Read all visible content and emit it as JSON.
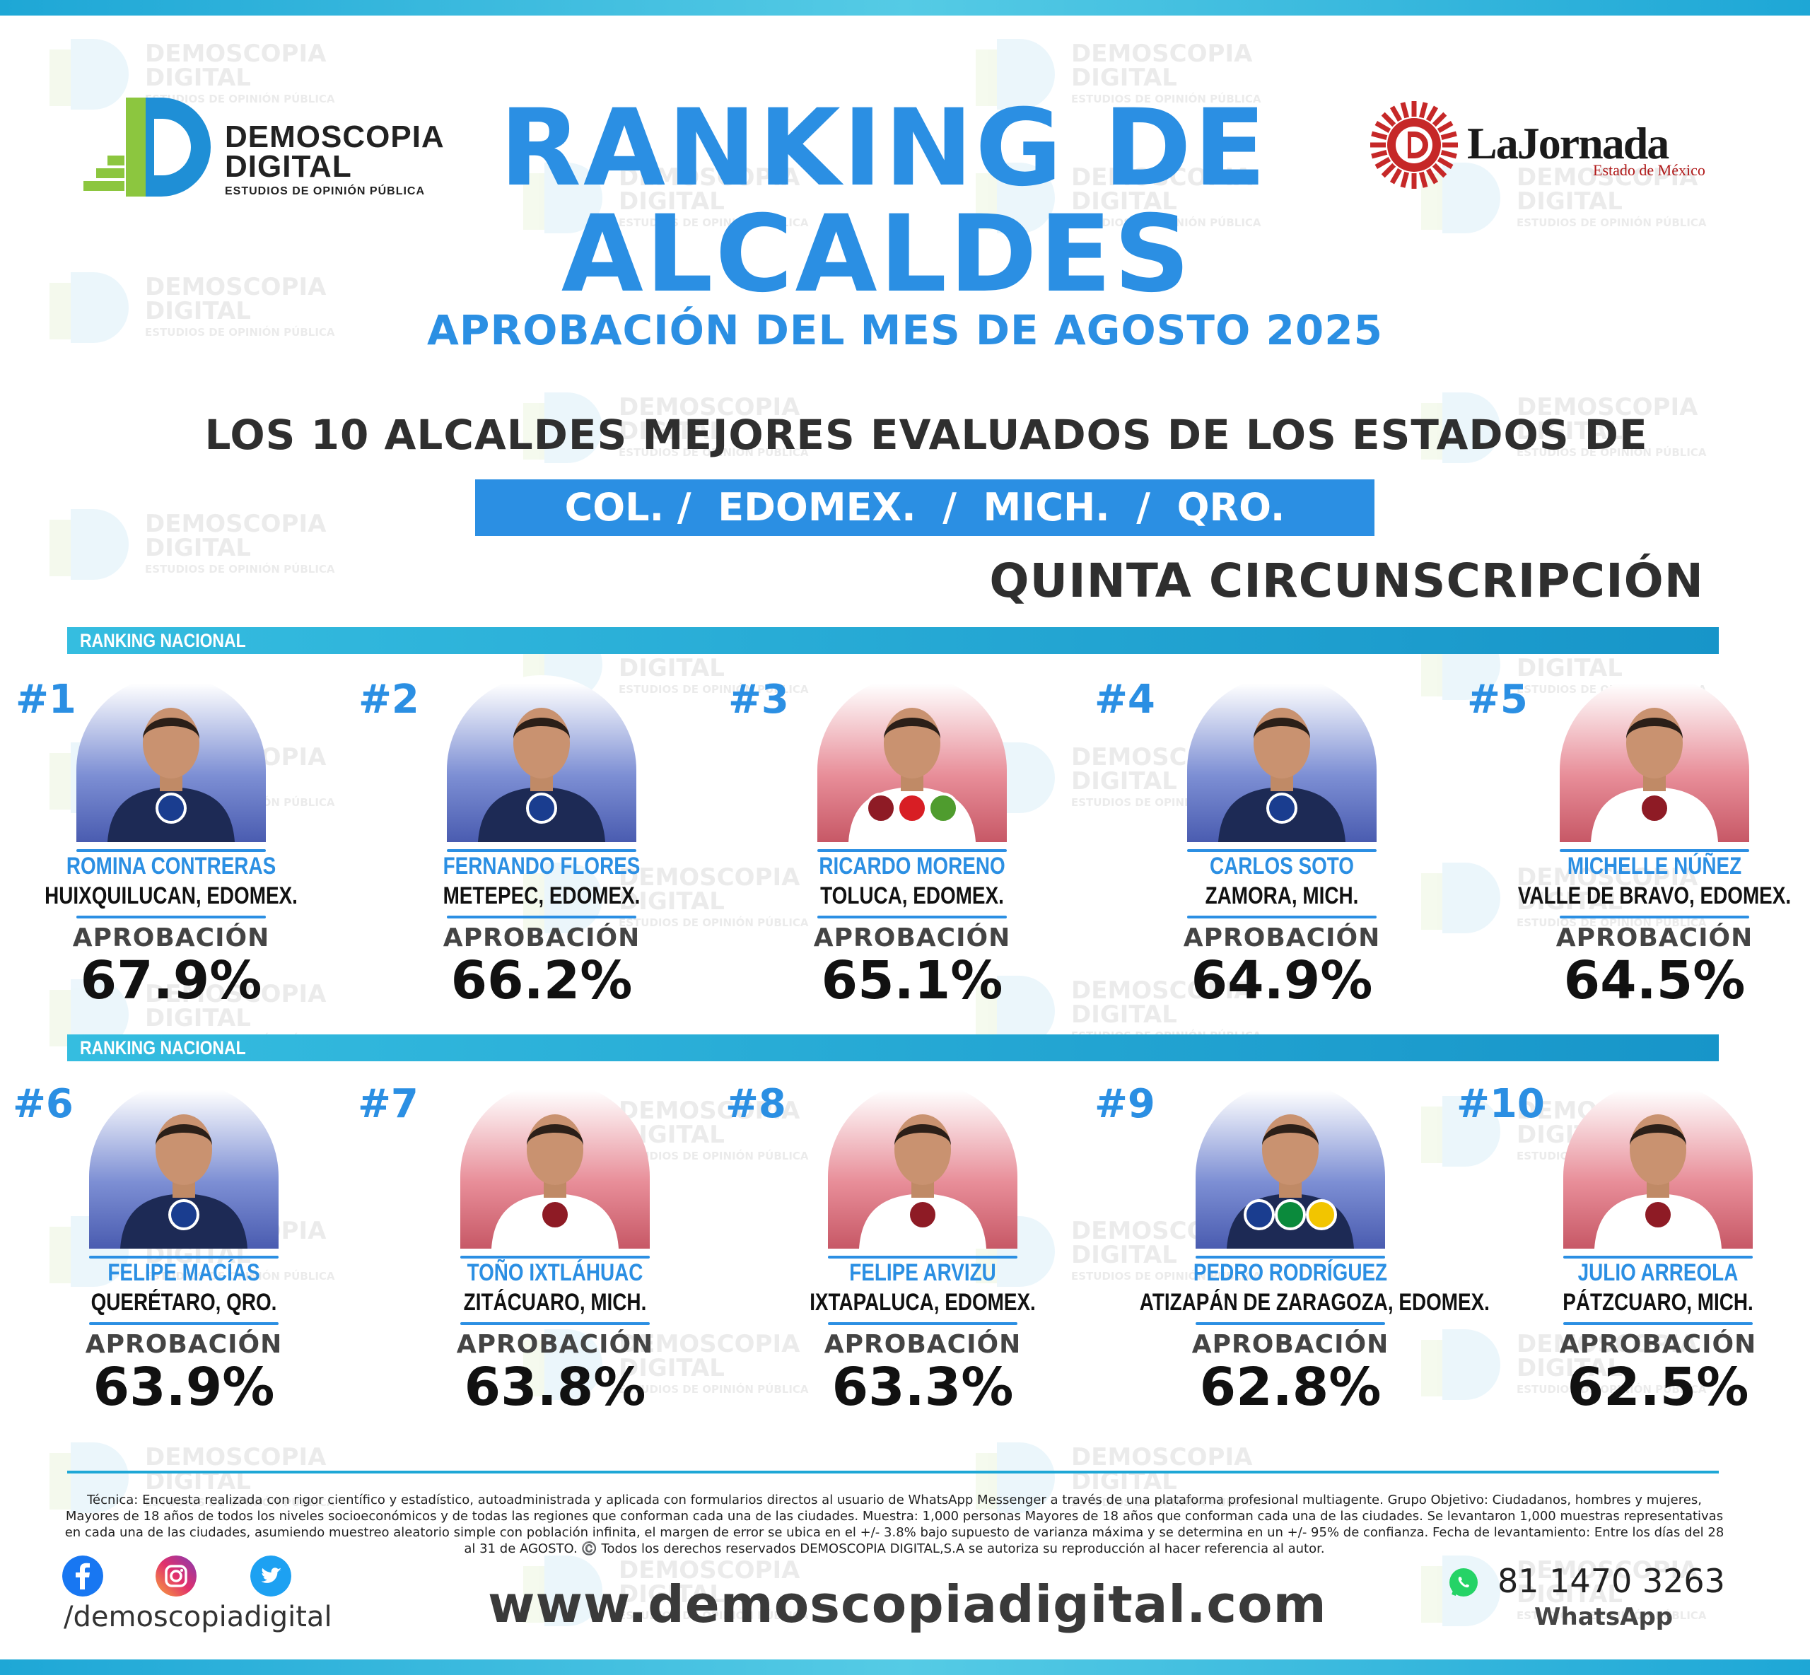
{
  "brand": {
    "name_line1": "DEMOSCOPIA",
    "name_line2": "DIGITAL",
    "tagline": "ESTUDIOS DE OPINIÓN PÚBLICA",
    "partner_name": "LaJornada",
    "partner_sub": "Estado de México",
    "colors": {
      "primary": "#2b8fe3",
      "accent": "#1ea7d6",
      "green": "#8cc63f",
      "red": "#c62828"
    }
  },
  "title_line1": "RANKING DE",
  "title_line2": "ALCALDES",
  "subtitle": "APROBACIÓN DEL MES DE AGOSTO 2025",
  "heading": "LOS 10 ALCALDES MEJORES EVALUADOS DE LOS ESTADOS DE",
  "states": "COL. /  EDOMEX.  /  MICH.  /  QRO.",
  "circumscription": "QUINTA CIRCUNSCRIPCIÓN",
  "section_label": "RANKING NACIONAL",
  "approval_label": "APROBACIÓN",
  "mayors": [
    {
      "rank": "#1",
      "name": "ROMINA CONTRERAS",
      "city": "HUIXQUILUCAN, EDOMEX.",
      "approval": "67.9%",
      "party": "PAN",
      "bg": "blue"
    },
    {
      "rank": "#2",
      "name": "FERNANDO FLORES",
      "city": "METEPEC, EDOMEX.",
      "approval": "66.2%",
      "party": "PAN",
      "bg": "blue"
    },
    {
      "rank": "#3",
      "name": "RICARDO MORENO",
      "city": "TOLUCA, EDOMEX.",
      "approval": "65.1%",
      "party": "morena / PT / VERDE",
      "bg": "red"
    },
    {
      "rank": "#4",
      "name": "CARLOS SOTO",
      "city": "ZAMORA, MICH.",
      "approval": "64.9%",
      "party": "PAN",
      "bg": "blue"
    },
    {
      "rank": "#5",
      "name": "MICHELLE NÚÑEZ",
      "city": "VALLE DE BRAVO, EDOMEX.",
      "approval": "64.5%",
      "party": "morena",
      "bg": "red"
    },
    {
      "rank": "#6",
      "name": "FELIPE MACÍAS",
      "city": "QUERÉTARO, QRO.",
      "approval": "63.9%",
      "party": "PAN",
      "bg": "blue"
    },
    {
      "rank": "#7",
      "name": "TOÑO IXTLÁHUAC",
      "city": "ZITÁCUARO, MICH.",
      "approval": "63.8%",
      "party": "morena",
      "bg": "red"
    },
    {
      "rank": "#8",
      "name": "FELIPE ARVIZU",
      "city": "IXTAPALUCA, EDOMEX.",
      "approval": "63.3%",
      "party": "morena",
      "bg": "red"
    },
    {
      "rank": "#9",
      "name": "PEDRO RODRÍGUEZ",
      "city": "ATIZAPÁN DE ZARAGOZA, EDOMEX.",
      "approval": "62.8%",
      "party": "PAN / PRI / PRD",
      "bg": "blue"
    },
    {
      "rank": "#10",
      "name": "JULIO ARREOLA",
      "city": "PÁTZCUARO, MICH.",
      "approval": "62.5%",
      "party": "morena",
      "bg": "red"
    }
  ],
  "footer": {
    "tecnica": "Técnica: Encuesta realizada con rigor científico y estadístico, autoadministrada y aplicada con formularios directos al usuario de WhatsApp Messenger a través de una plataforma profesional multiagente. Grupo Objetivo: Ciudadanos, hombres y mujeres, Mayores de 18 años de todos los niveles socioeconómicos y de todas las regiones que conforman cada una de las ciudades. Muestra: 1,000 personas Mayores de 18 años que conforman cada una de las ciudades. Se levantaron 1,000 muestras representativas en cada una de las ciudades, asumiendo muestreo aleatorio simple con población infinita, el margen de error se ubica en el +/- 3.8% bajo supuesto de varianza máxima y se determina en un +/- 95% de confianza. Fecha de levantamiento: Entre los días del 28 al 31 de AGOSTO. ©️ Todos los derechos reservados DEMOSCOPIA DIGITAL,S.A se autoriza su reproducción al hacer referencia al autor.",
    "handle": "/demoscopiadigital",
    "website": "www.demoscopiadigital.com",
    "phone": "81 1470 3263",
    "whatsapp_label": "WhatsApp",
    "icons": [
      "facebook-icon",
      "instagram-icon",
      "twitter-icon",
      "whatsapp-icon"
    ]
  }
}
